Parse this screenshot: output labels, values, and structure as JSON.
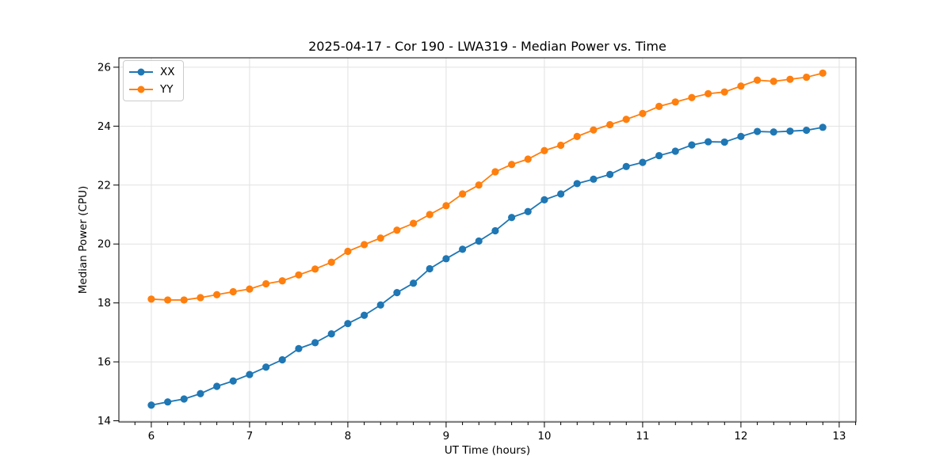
{
  "chart_data": {
    "type": "line",
    "title": "2025-04-17 - Cor 190 - LWA319 - Median Power vs. Time",
    "xlabel": "UT Time (hours)",
    "ylabel": "Median Power (CPU)",
    "marker": "o",
    "grid": true,
    "legend_position": "upper left",
    "xlim": [
      5.67,
      13.17
    ],
    "ylim": [
      13.96,
      26.32
    ],
    "x_ticks": [
      6,
      7,
      8,
      9,
      10,
      11,
      12,
      13
    ],
    "x_minor_tick_step": 0.16667,
    "y_ticks": [
      14,
      16,
      18,
      20,
      22,
      24,
      26
    ],
    "x": [
      6.0,
      6.167,
      6.333,
      6.5,
      6.667,
      6.833,
      7.0,
      7.167,
      7.333,
      7.5,
      7.667,
      7.833,
      8.0,
      8.167,
      8.333,
      8.5,
      8.667,
      8.833,
      9.0,
      9.167,
      9.333,
      9.5,
      9.667,
      9.833,
      10.0,
      10.167,
      10.333,
      10.5,
      10.667,
      10.833,
      11.0,
      11.167,
      11.333,
      11.5,
      11.667,
      11.833,
      12.0,
      12.167,
      12.333,
      12.5,
      12.667,
      12.833
    ],
    "series": [
      {
        "name": "XX",
        "color": "#1f77b4",
        "values": [
          14.53,
          14.64,
          14.74,
          14.92,
          15.17,
          15.35,
          15.57,
          15.82,
          16.07,
          16.45,
          16.65,
          16.95,
          17.3,
          17.58,
          17.93,
          18.35,
          18.67,
          19.16,
          19.5,
          19.82,
          20.1,
          20.45,
          20.9,
          21.1,
          21.5,
          21.7,
          22.05,
          22.2,
          22.36,
          22.63,
          22.77,
          23.0,
          23.15,
          23.36,
          23.47,
          23.46,
          23.65,
          23.82,
          23.8,
          23.83,
          23.86,
          23.96
        ]
      },
      {
        "name": "YY",
        "color": "#ff7f0e",
        "values": [
          18.13,
          18.1,
          18.1,
          18.18,
          18.28,
          18.38,
          18.47,
          18.65,
          18.75,
          18.95,
          19.15,
          19.38,
          19.75,
          19.98,
          20.2,
          20.47,
          20.7,
          21.0,
          21.3,
          21.7,
          22.0,
          22.45,
          22.7,
          22.88,
          23.17,
          23.35,
          23.65,
          23.87,
          24.05,
          24.23,
          24.43,
          24.67,
          24.82,
          24.97,
          25.1,
          25.16,
          25.36,
          25.56,
          25.52,
          25.59,
          25.66,
          25.8
        ]
      }
    ],
    "style": {
      "grid_color": "#e2e2e2",
      "spine_color": "#000000",
      "tick_color": "#000000",
      "background": "#ffffff"
    }
  }
}
